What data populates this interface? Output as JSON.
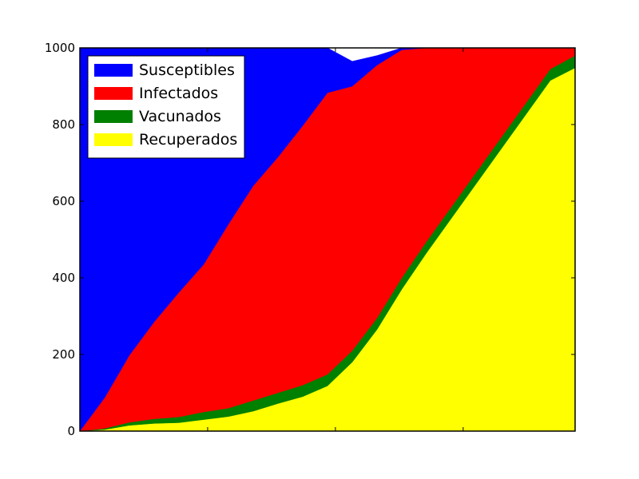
{
  "chart_data": {
    "type": "area",
    "stacked": true,
    "title": "",
    "xlabel": "",
    "ylabel": "",
    "xlim": [
      0,
      100
    ],
    "ylim": [
      0,
      1000
    ],
    "y_ticks": [
      0,
      200,
      400,
      600,
      800,
      1000
    ],
    "y_tick_labels": [
      "0",
      "200",
      "400",
      "600",
      "800",
      "1000"
    ],
    "x_ticks": [
      0,
      25.8,
      51.6,
      77.4,
      100
    ],
    "x_tick_labels": [
      "",
      "",
      "",
      "",
      ""
    ],
    "grid": false,
    "legend_position": "top-left",
    "x": [
      0,
      5,
      10,
      15,
      20,
      25,
      30,
      35,
      40,
      45,
      50,
      55,
      60,
      65,
      70,
      75,
      80,
      85,
      90,
      95,
      100
    ],
    "series": [
      {
        "name": "Recuperados",
        "color": "#ffff00",
        "values": [
          0,
          4,
          15,
          20,
          22,
          30,
          38,
          52,
          72,
          90,
          118,
          180,
          265,
          370,
          465,
          555,
          645,
          735,
          825,
          915,
          948
        ]
      },
      {
        "name": "Vacunados",
        "color": "#008000",
        "values": [
          0,
          3,
          8,
          12,
          15,
          20,
          22,
          28,
          28,
          30,
          30,
          30,
          30,
          30,
          30,
          30,
          30,
          30,
          30,
          30,
          32
        ]
      },
      {
        "name": "Infectados",
        "color": "#ff0000",
        "values": [
          0,
          80,
          175,
          253,
          325,
          385,
          480,
          560,
          615,
          677,
          735,
          690,
          660,
          595,
          505,
          415,
          325,
          235,
          145,
          55,
          20
        ]
      },
      {
        "name": "Susceptibles",
        "color": "#0000ff",
        "values": [
          1000,
          913,
          802,
          715,
          638,
          565,
          460,
          360,
          285,
          203,
          117,
          65,
          25,
          5,
          0,
          0,
          0,
          0,
          0,
          0,
          0
        ]
      }
    ],
    "legend": [
      "Susceptibles",
      "Infectados",
      "Vacunados",
      "Recuperados"
    ]
  }
}
